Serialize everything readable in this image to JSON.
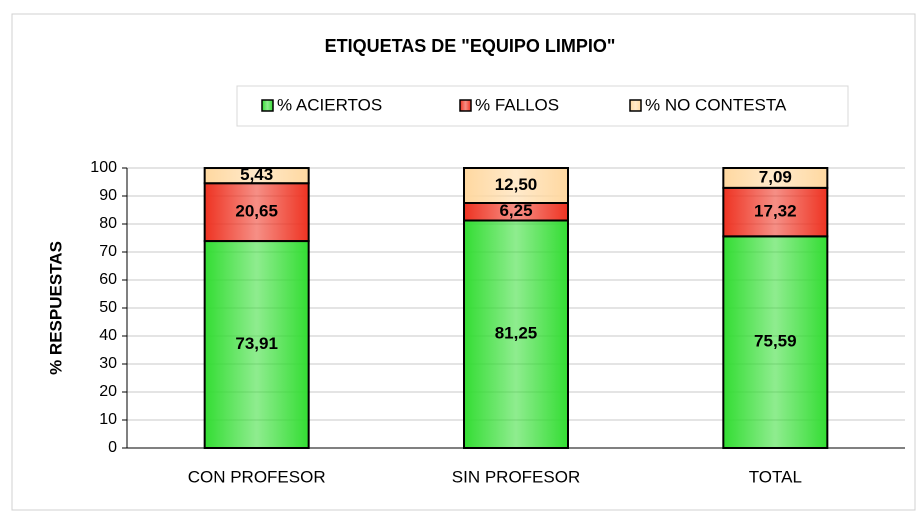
{
  "chart_data": {
    "type": "stacked_bar",
    "title": "ETIQUETAS DE \"EQUIPO LIMPIO\"",
    "y_label": "% RESPUESTAS",
    "categories": [
      "CON PROFESOR",
      "SIN PROFESOR",
      "TOTAL"
    ],
    "series": [
      {
        "name": "% ACIERTOS",
        "color": "#33dd33",
        "values": [
          73.91,
          81.25,
          75.59
        ],
        "value_labels": [
          "73,91",
          "81,25",
          "75,59"
        ]
      },
      {
        "name": "% FALLOS",
        "color": "#ee3322",
        "values": [
          20.65,
          6.25,
          17.32
        ],
        "value_labels": [
          "20,65",
          "6,25",
          "17,32"
        ]
      },
      {
        "name": "% NO CONTESTA",
        "color": "#ffd8a0",
        "values": [
          5.43,
          12.5,
          7.09
        ],
        "value_labels": [
          "5,43",
          "12,50",
          "7,09"
        ]
      }
    ],
    "ylim": [
      0,
      100
    ],
    "yticks": [
      0,
      10,
      20,
      30,
      40,
      50,
      60,
      70,
      80,
      90,
      100
    ],
    "grid": true
  }
}
